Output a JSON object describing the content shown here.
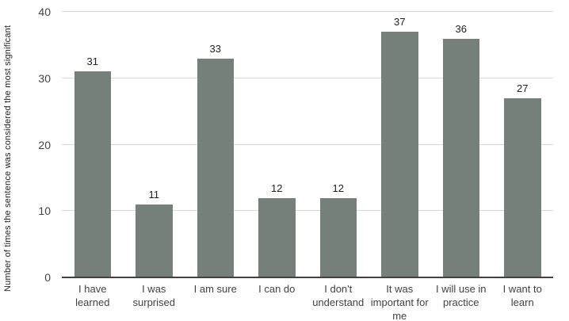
{
  "chart_data": {
    "type": "bar",
    "title": "",
    "xlabel": "",
    "ylabel": "Number of times the sentence was considered the most significant",
    "categories": [
      "I have learned",
      "I was surprised",
      "I am sure",
      "I can do",
      "I don't understand",
      "It was important for me",
      "I will use in practice",
      "I want to learn"
    ],
    "values": [
      31,
      11,
      33,
      12,
      12,
      37,
      36,
      27
    ],
    "ylim": [
      0,
      40
    ],
    "y_ticks": [
      0,
      10,
      20,
      30,
      40
    ],
    "grid": true,
    "legend": false,
    "colors": {
      "bar": "#75807b",
      "gridline": "#dadada",
      "baseline": "#424242",
      "value_label": "#212121",
      "tick_label": "#424242",
      "background": "#ffffff"
    }
  }
}
